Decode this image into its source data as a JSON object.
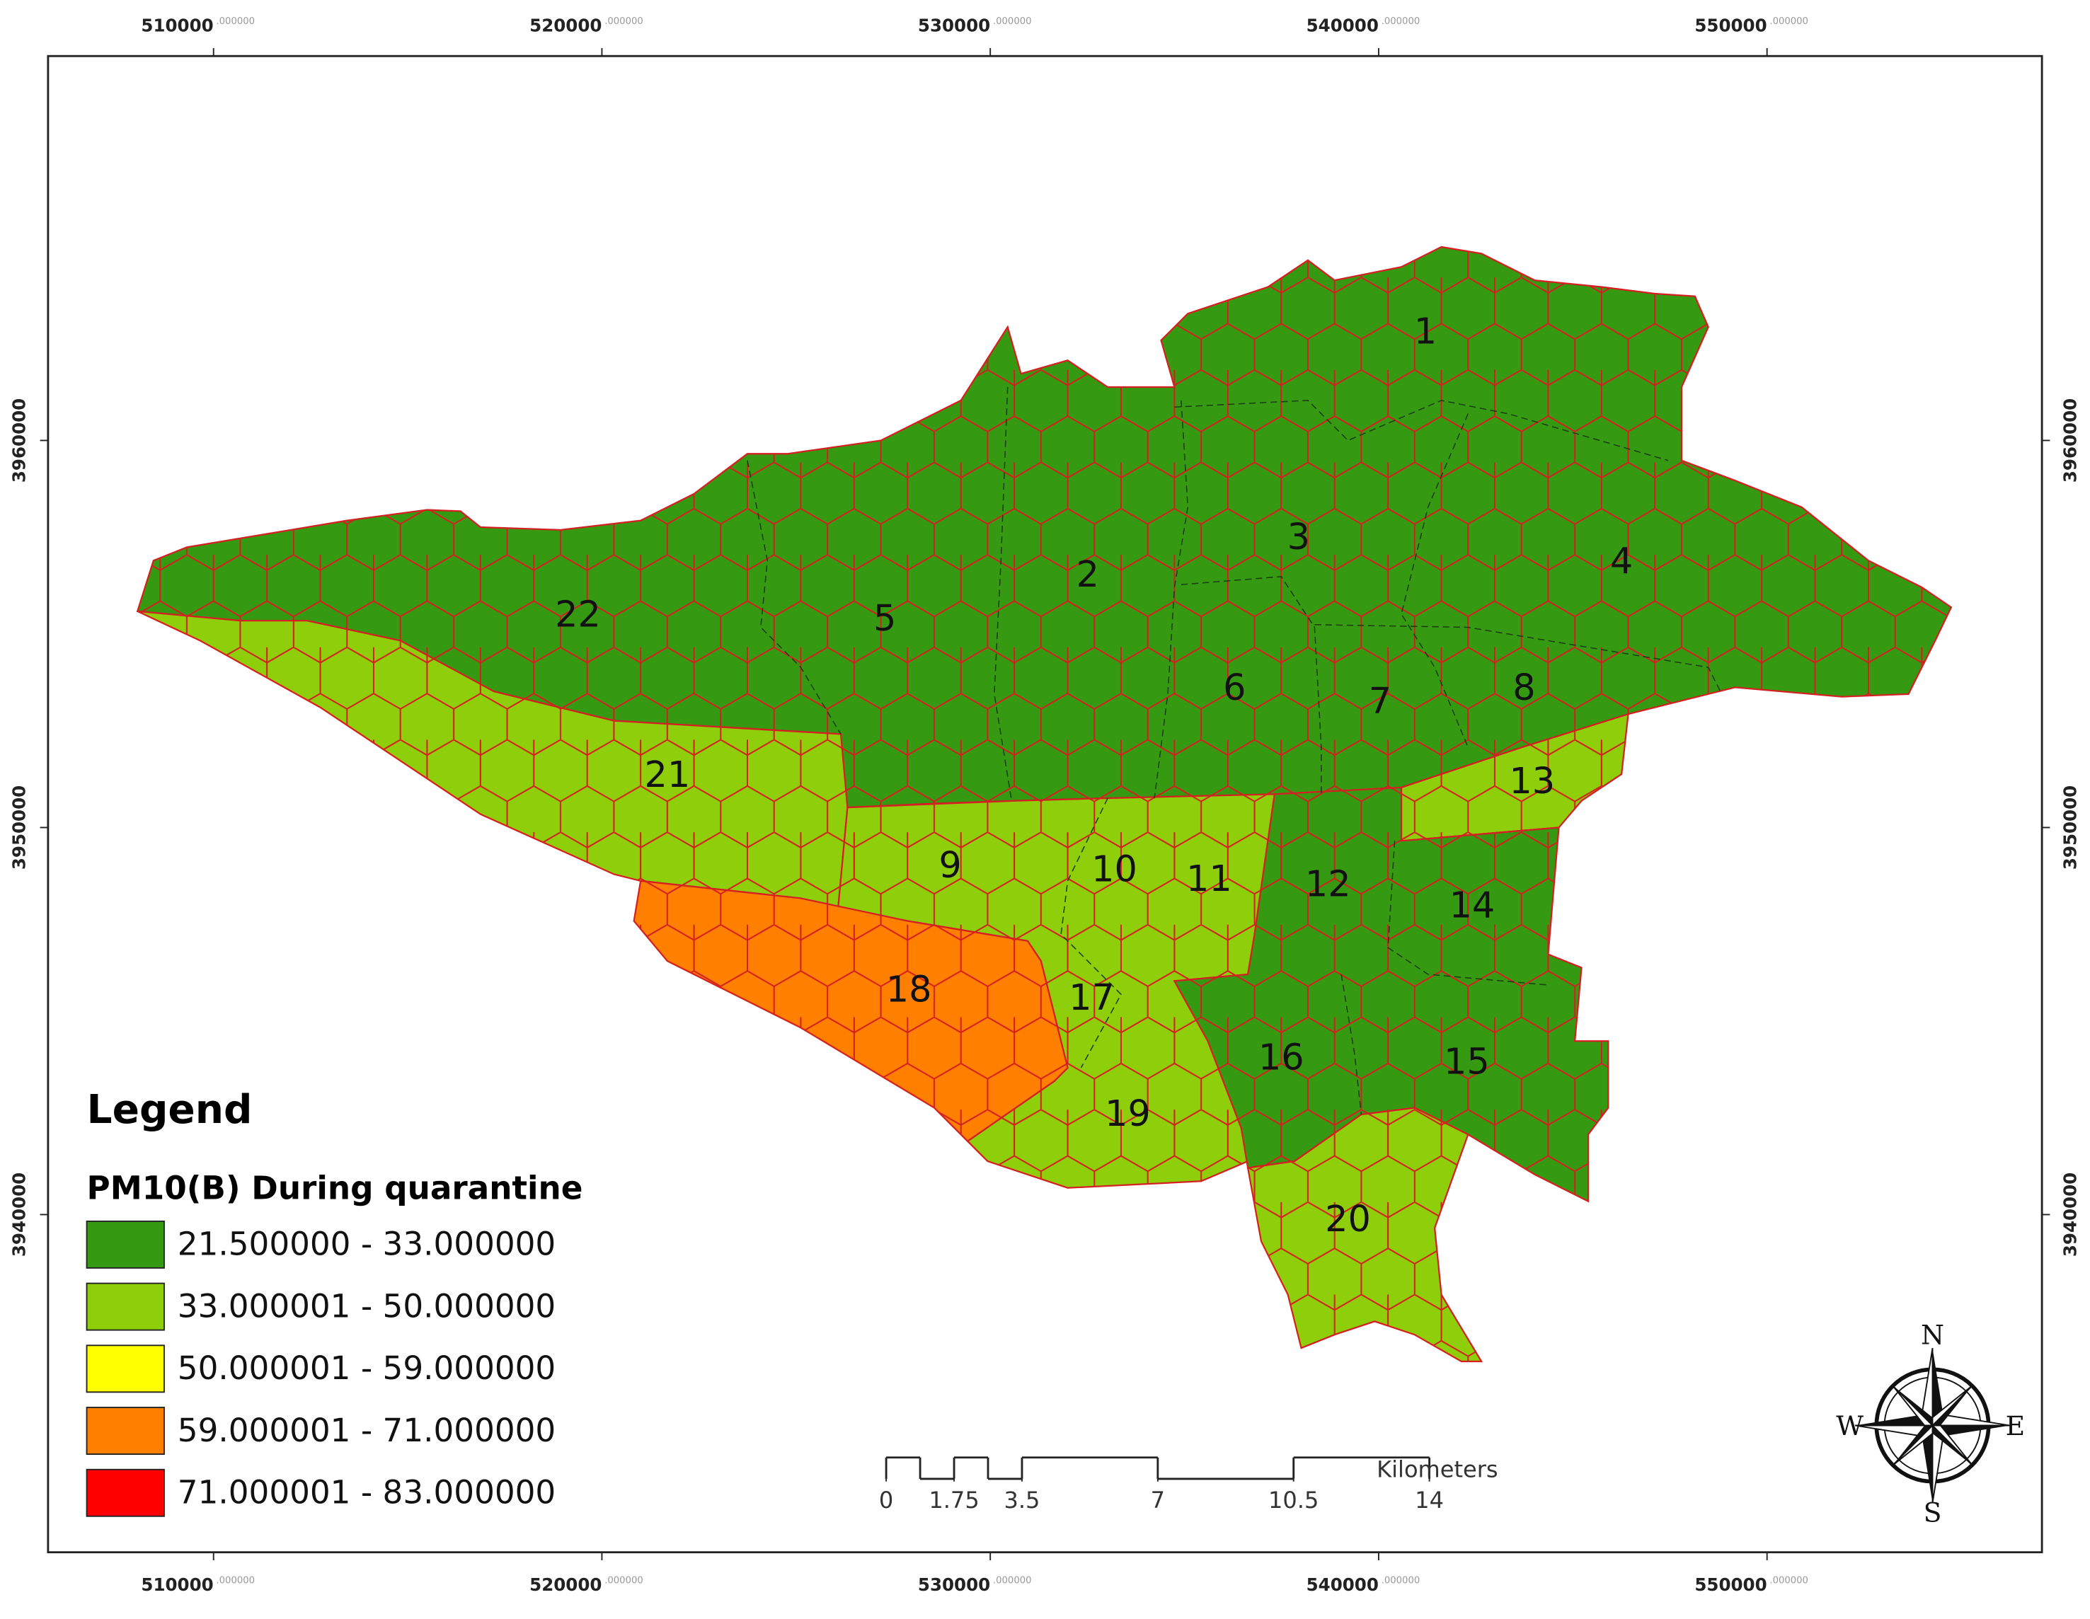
{
  "map": {
    "x_ticks": [
      510000,
      520000,
      530000,
      540000,
      550000
    ],
    "y_ticks": [
      3960000,
      3950000,
      3940000
    ],
    "coordinate_suffix": ".000000",
    "districts": [
      "1",
      "2",
      "3",
      "4",
      "5",
      "6",
      "7",
      "8",
      "9",
      "10",
      "11",
      "12",
      "13",
      "14",
      "15",
      "16",
      "17",
      "18",
      "19",
      "20",
      "21",
      "22"
    ],
    "legend": {
      "title": "Legend",
      "subtitle": "PM10(B) During quarantine",
      "classes": [
        {
          "label": "21.500000 - 33.000000",
          "color": "#359a12"
        },
        {
          "label": "33.000001 - 50.000000",
          "color": "#8fce0a"
        },
        {
          "label": "50.000001 - 59.000000",
          "color": "#ffff00"
        },
        {
          "label": "59.000001 - 71.000000",
          "color": "#ff8000"
        },
        {
          "label": "71.000001 - 83.000000",
          "color": "#ff0000"
        }
      ]
    },
    "scale_bar": {
      "ticks": [
        0,
        1.75,
        3.5,
        7,
        10.5,
        14
      ],
      "unit": "Kilometers"
    },
    "compass": {
      "north": "N",
      "south": "S",
      "east": "E",
      "west": "W"
    }
  }
}
